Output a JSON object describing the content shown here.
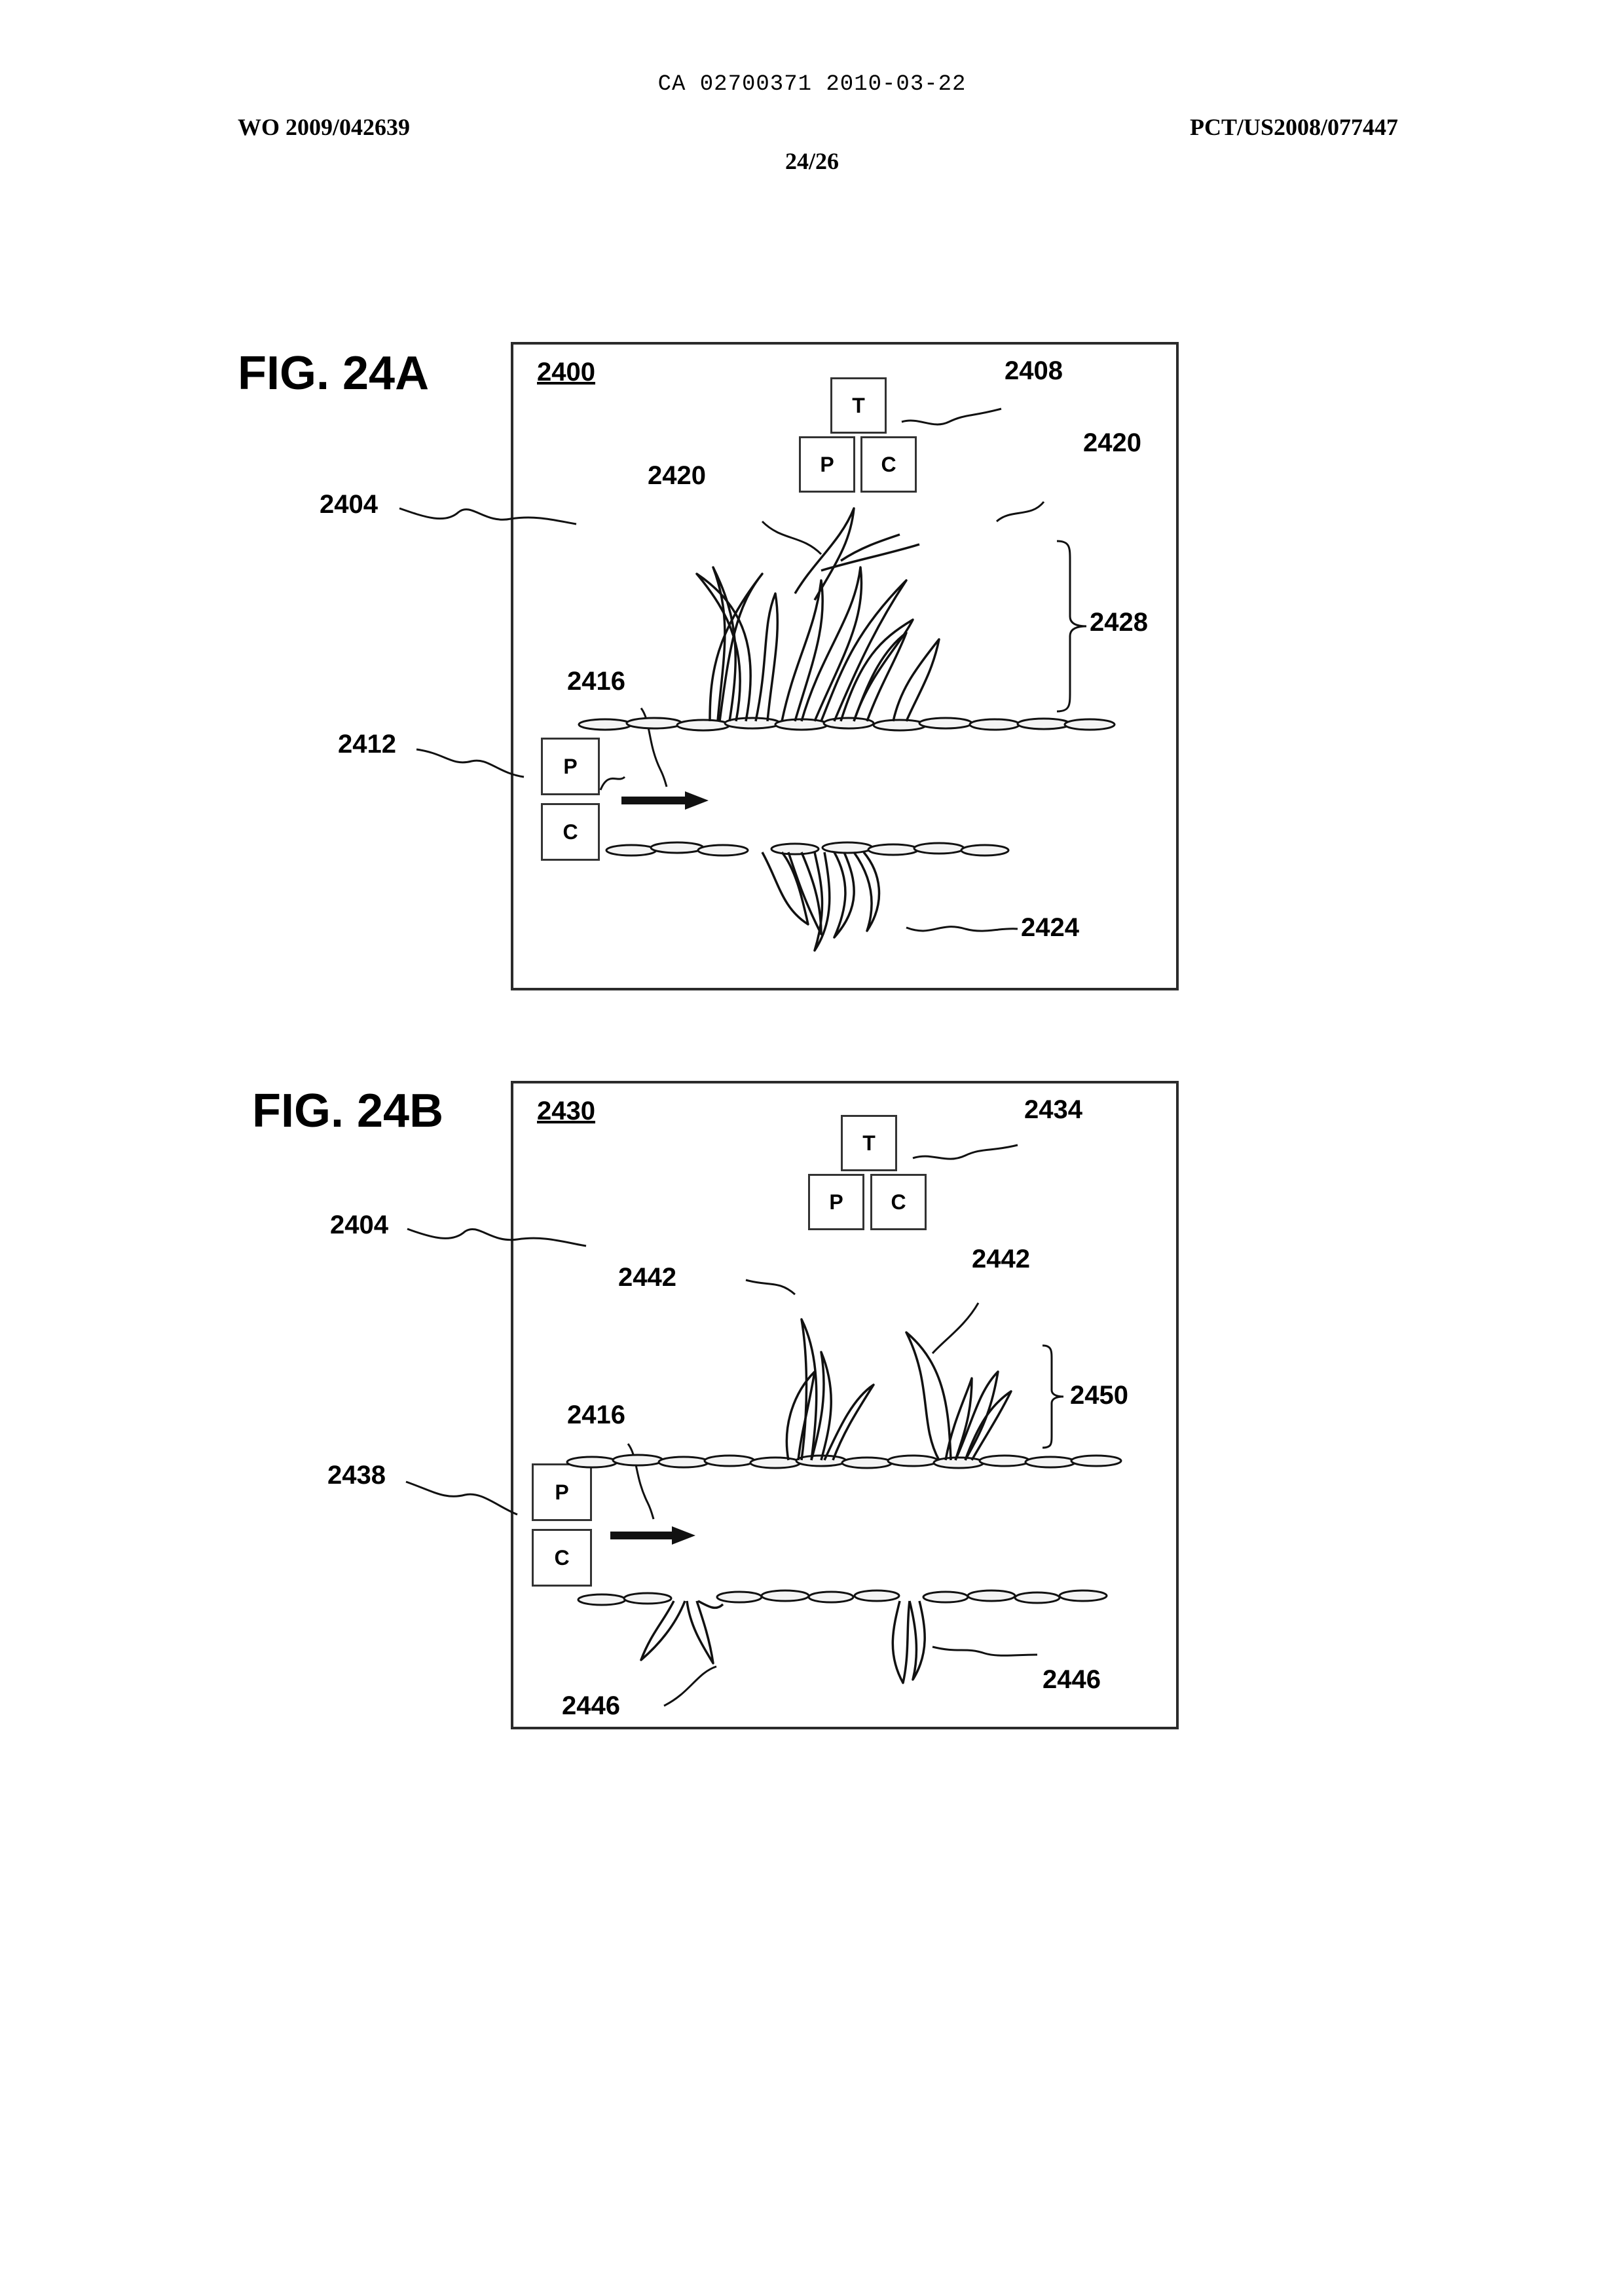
{
  "header": {
    "ca_code": "CA 02700371 2010-03-22",
    "publication_number": "WO 2009/042639",
    "application_number": "PCT/US2008/077447",
    "sheet": "24/26"
  },
  "figures": [
    {
      "title": "FIG. 24A",
      "panel_id": "2400",
      "boxes": {
        "t": "T",
        "p": "P",
        "c": "C"
      },
      "side_boxes": {
        "p": "P",
        "c": "C"
      },
      "refs": {
        "tpc": "2408",
        "region": "2404",
        "grass_left": "2420",
        "grass_right": "2420",
        "bracket": "2428",
        "arrow": "2416",
        "pc": "2412",
        "roots": "2424"
      }
    },
    {
      "title": "FIG. 24B",
      "panel_id": "2430",
      "boxes": {
        "t": "T",
        "p": "P",
        "c": "C"
      },
      "side_boxes": {
        "p": "P",
        "c": "C"
      },
      "refs": {
        "tpc": "2434",
        "region": "2404",
        "grass_left": "2442",
        "grass_right": "2442",
        "bracket": "2450",
        "arrow": "2416",
        "pc": "2438",
        "roots_left": "2446",
        "roots_right": "2446"
      }
    }
  ]
}
